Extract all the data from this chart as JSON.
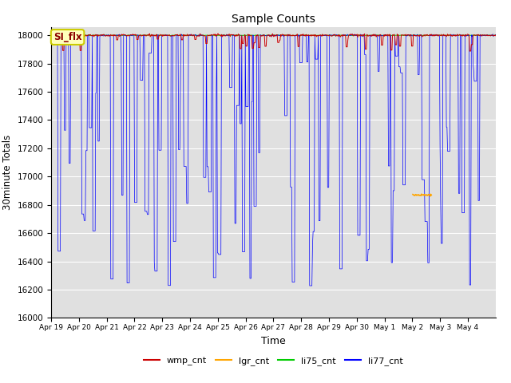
{
  "title": "Sample Counts",
  "xlabel": "Time",
  "ylabel": "30minute Totals",
  "ylim": [
    16000,
    18060
  ],
  "yticks": [
    16000,
    16200,
    16400,
    16600,
    16800,
    17000,
    17200,
    17400,
    17600,
    17800,
    18000
  ],
  "xtick_labels": [
    "Apr 19",
    "Apr 20",
    "Apr 21",
    "Apr 22",
    "Apr 23",
    "Apr 24",
    "Apr 25",
    "Apr 26",
    "Apr 27",
    "Apr 28",
    "Apr 29",
    "Apr 30",
    "May 1",
    "May 2",
    "May 3",
    "May 4"
  ],
  "annotation_text": "SI_flx",
  "background_color": "#e0e0e0",
  "li75_color": "#00cc00",
  "li77_color": "#0000ff",
  "wmp_color": "#cc0000",
  "lgr_color": "#ffa500",
  "grid_color": "#ffffff",
  "n_days": 16
}
